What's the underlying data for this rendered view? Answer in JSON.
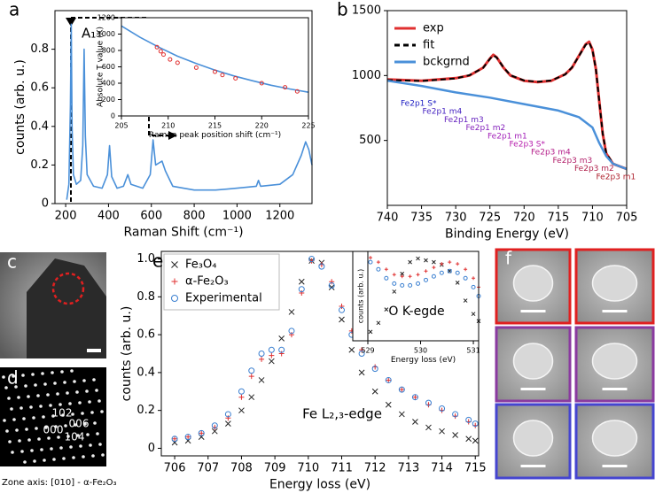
{
  "panel_labels": [
    "a",
    "b",
    "c",
    "d",
    "e",
    "f"
  ],
  "diffraction": {
    "spots": [
      "102",
      "006",
      "000",
      "104"
    ],
    "caption": "Zone axis: [010] - α-Fe₂O₃"
  },
  "chart_data": [
    {
      "type": "line",
      "xlabel": "Raman Shift (cm⁻¹)",
      "ylabel": "counts (arb. u.)",
      "xlim": [
        150,
        1350
      ],
      "xticks": [
        200,
        400,
        600,
        800,
        1000,
        1200
      ],
      "ylim": [
        0,
        1
      ],
      "yticks": [
        0,
        0.2,
        0.4,
        0.6,
        0.8
      ],
      "annotations": [
        "A₁"
      ],
      "series": [
        {
          "color": "#4a90d9",
          "x": [
            205,
            215,
            222,
            226,
            230,
            236,
            250,
            270,
            280,
            286,
            292,
            300,
            330,
            370,
            395,
            405,
            415,
            440,
            470,
            490,
            505,
            560,
            595,
            608,
            620,
            650,
            665,
            700,
            800,
            900,
            1000,
            1090,
            1100,
            1110,
            1200,
            1260,
            1300,
            1320,
            1335,
            1350
          ],
          "values": [
            0.02,
            0.1,
            0.5,
            0.93,
            0.4,
            0.15,
            0.1,
            0.12,
            0.3,
            0.8,
            0.35,
            0.15,
            0.09,
            0.08,
            0.15,
            0.3,
            0.14,
            0.08,
            0.09,
            0.15,
            0.1,
            0.08,
            0.15,
            0.33,
            0.2,
            0.22,
            0.17,
            0.09,
            0.07,
            0.07,
            0.08,
            0.09,
            0.12,
            0.09,
            0.1,
            0.15,
            0.25,
            0.32,
            0.28,
            0.2
          ]
        }
      ]
    },
    {
      "type": "line",
      "xlabel": "Raman peak position shift (cm⁻¹)",
      "ylabel": "Absolute T value (K)",
      "xlim": [
        205,
        225
      ],
      "xticks": [
        205,
        210,
        215,
        220,
        225
      ],
      "ylim": [
        0,
        1200
      ],
      "yticks": [
        0,
        200,
        400,
        600,
        800,
        1000,
        1200
      ],
      "series": [
        {
          "color": "#4a90d9",
          "x": [
            205,
            207,
            209,
            211,
            213,
            215,
            217,
            219,
            221,
            223,
            225
          ],
          "values": [
            1100,
            960,
            840,
            730,
            640,
            560,
            490,
            430,
            375,
            330,
            290
          ]
        },
        {
          "color": "#e03030",
          "marker": "o",
          "x": [
            208.8,
            209.2,
            209.5,
            210.2,
            211,
            213,
            215,
            215.8,
            217.2,
            220,
            222.5,
            223.8
          ],
          "values": [
            840,
            790,
            750,
            690,
            650,
            590,
            540,
            500,
            460,
            400,
            350,
            300
          ]
        }
      ]
    },
    {
      "type": "line",
      "xlabel": "Binding Energy (eV)",
      "legend": "upper left",
      "xlim": [
        740,
        705
      ],
      "xticks": [
        740,
        735,
        730,
        725,
        720,
        715,
        710,
        705
      ],
      "ylim": [
        0,
        1500
      ],
      "yticks": [
        500,
        1000,
        1500
      ],
      "annotations": [
        "Fe2p1 S*",
        "Fe2p1 m4",
        "Fe2p1 m3",
        "Fe2p1 m2",
        "Fe2p1 m1",
        "Fe2p3 S*",
        "Fe2p3 m4",
        "Fe2p3 m3",
        "Fe2p3 m2",
        "Fe2p3 m1"
      ],
      "series": [
        {
          "name": "exp",
          "color": "#e03030",
          "width": 3,
          "x": [
            740,
            735,
            730,
            728,
            726,
            725,
            724.5,
            724,
            723,
            722,
            720,
            718,
            716,
            714,
            713,
            712,
            711,
            710.5,
            710,
            709.5,
            709,
            708.5,
            708,
            707,
            706,
            705
          ],
          "values": [
            970,
            960,
            980,
            1000,
            1060,
            1130,
            1160,
            1140,
            1060,
            1000,
            960,
            950,
            960,
            1010,
            1060,
            1150,
            1240,
            1260,
            1200,
            1050,
            800,
            550,
            400,
            320,
            300,
            280
          ]
        },
        {
          "name": "fit",
          "color": "#000000",
          "style": "dashed",
          "width": 2,
          "x": [
            740,
            735,
            730,
            728,
            726,
            725,
            724.5,
            724,
            723,
            722,
            720,
            718,
            716,
            714,
            713,
            712,
            711,
            710.5,
            710,
            709.5,
            709,
            708.5,
            708,
            707,
            706,
            705
          ],
          "values": [
            965,
            958,
            978,
            1002,
            1058,
            1128,
            1155,
            1138,
            1062,
            1002,
            962,
            952,
            962,
            1008,
            1062,
            1148,
            1236,
            1255,
            1198,
            1048,
            802,
            552,
            402,
            322,
            300,
            280
          ]
        },
        {
          "name": "bckgrnd",
          "color": "#4a90d9",
          "width": 2.5,
          "x": [
            740,
            735,
            730,
            725,
            720,
            715,
            712,
            710,
            709,
            708,
            707,
            705
          ],
          "values": [
            960,
            920,
            870,
            830,
            780,
            730,
            680,
            600,
            480,
            380,
            320,
            280
          ]
        }
      ]
    },
    {
      "type": "line",
      "xlabel": "Energy loss (eV)",
      "ylabel": "counts (arb. u.)",
      "legend": "upper left",
      "xlim": [
        705.6,
        715.1
      ],
      "xticks": [
        706,
        707,
        708,
        709,
        710,
        711,
        712,
        713,
        714,
        715
      ],
      "ylim": [
        -0.04,
        1.04
      ],
      "yticks": [
        0,
        0.2,
        0.4,
        0.6,
        0.8,
        {
          "value": 1,
          "label": "1.0"
        }
      ],
      "annotations": [
        "Fe L₂,₃-edge"
      ],
      "series": [
        {
          "name": "Fe₃O₄",
          "color": "#222222",
          "marker": "x",
          "x": [
            706,
            706.4,
            706.8,
            707.2,
            707.6,
            708,
            708.3,
            708.6,
            708.9,
            709.2,
            709.5,
            709.8,
            710.1,
            710.4,
            710.7,
            711,
            711.3,
            711.6,
            712,
            712.4,
            712.8,
            713.2,
            713.6,
            714,
            714.4,
            714.8,
            715
          ],
          "values": [
            0.03,
            0.04,
            0.06,
            0.09,
            0.13,
            0.2,
            0.27,
            0.36,
            0.46,
            0.58,
            0.72,
            0.88,
            0.99,
            0.98,
            0.85,
            0.68,
            0.52,
            0.4,
            0.3,
            0.23,
            0.18,
            0.14,
            0.11,
            0.09,
            0.07,
            0.05,
            0.04
          ]
        },
        {
          "name": "α-Fe₂O₃",
          "color": "#e03030",
          "marker": "+",
          "x": [
            706,
            706.4,
            706.8,
            707.2,
            707.6,
            708,
            708.3,
            708.6,
            708.9,
            709.2,
            709.5,
            709.8,
            710.1,
            710.4,
            710.7,
            711,
            711.3,
            711.6,
            712,
            712.4,
            712.8,
            713.2,
            713.6,
            714,
            714.4,
            714.8,
            715
          ],
          "values": [
            0.05,
            0.06,
            0.08,
            0.11,
            0.16,
            0.27,
            0.38,
            0.47,
            0.49,
            0.5,
            0.6,
            0.82,
            0.99,
            0.97,
            0.88,
            0.75,
            0.62,
            0.52,
            0.43,
            0.36,
            0.31,
            0.27,
            0.23,
            0.2,
            0.17,
            0.14,
            0.12
          ]
        },
        {
          "name": "Experimental",
          "color": "#3a7fd0",
          "marker": "o",
          "x": [
            706,
            706.4,
            706.8,
            707.2,
            707.6,
            708,
            708.3,
            708.6,
            708.9,
            709.2,
            709.5,
            709.8,
            710.1,
            710.4,
            710.7,
            711,
            711.3,
            711.6,
            712,
            712.4,
            712.8,
            713.2,
            713.6,
            714,
            714.4,
            714.8,
            715
          ],
          "values": [
            0.05,
            0.06,
            0.08,
            0.12,
            0.18,
            0.3,
            0.41,
            0.5,
            0.52,
            0.52,
            0.62,
            0.84,
            1.0,
            0.96,
            0.86,
            0.73,
            0.6,
            0.5,
            0.42,
            0.36,
            0.31,
            0.27,
            0.24,
            0.21,
            0.18,
            0.15,
            0.13
          ]
        }
      ]
    },
    {
      "type": "line",
      "xlabel": "Energy loss (eV)",
      "ylabel": "counts (arb. u.)",
      "xlim": [
        529,
        531.1
      ],
      "xticks": [
        529,
        530,
        531
      ],
      "ylim": [
        0,
        1
      ],
      "annotations": [
        "O K-egde"
      ],
      "series": [
        {
          "color": "#222222",
          "marker": "x",
          "x": [
            529.05,
            529.2,
            529.35,
            529.5,
            529.65,
            529.8,
            529.95,
            530.1,
            530.25,
            530.4,
            530.55,
            530.7,
            530.85,
            531.0,
            531.1
          ],
          "values": [
            0.1,
            0.2,
            0.35,
            0.55,
            0.75,
            0.88,
            0.92,
            0.9,
            0.88,
            0.85,
            0.78,
            0.65,
            0.45,
            0.3,
            0.22
          ]
        },
        {
          "color": "#e03030",
          "marker": "+",
          "x": [
            529.05,
            529.2,
            529.35,
            529.5,
            529.65,
            529.8,
            529.95,
            530.1,
            530.25,
            530.4,
            530.55,
            530.7,
            530.85,
            531.0,
            531.1
          ],
          "values": [
            0.93,
            0.88,
            0.8,
            0.74,
            0.72,
            0.72,
            0.74,
            0.78,
            0.82,
            0.86,
            0.88,
            0.86,
            0.8,
            0.7,
            0.6
          ]
        },
        {
          "color": "#3a7fd0",
          "marker": "o",
          "x": [
            529.05,
            529.2,
            529.35,
            529.5,
            529.65,
            529.8,
            529.95,
            530.1,
            530.25,
            530.4,
            530.55,
            530.7,
            530.85,
            531.0,
            531.1
          ],
          "values": [
            0.88,
            0.8,
            0.7,
            0.64,
            0.62,
            0.62,
            0.64,
            0.68,
            0.72,
            0.76,
            0.78,
            0.76,
            0.7,
            0.6,
            0.5
          ]
        }
      ]
    }
  ]
}
